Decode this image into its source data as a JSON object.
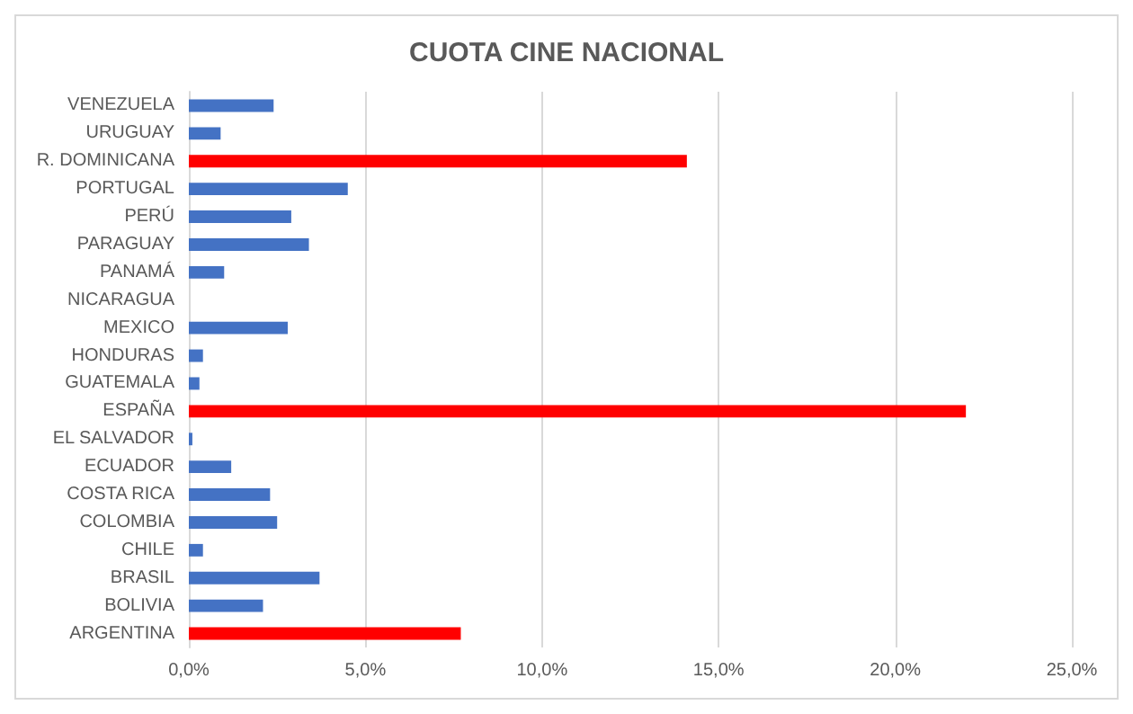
{
  "chart_data": {
    "type": "bar",
    "orientation": "horizontal",
    "title": "CUOTA CINE NACIONAL",
    "categories": [
      "VENEZUELA",
      "URUGUAY",
      "R. DOMINICANA",
      "PORTUGAL",
      "PERÚ",
      "PARAGUAY",
      "PANAMÁ",
      "NICARAGUA",
      "MEXICO",
      "HONDURAS",
      "GUATEMALA",
      "ESPAÑA",
      "EL SALVADOR",
      "ECUADOR",
      "COSTA RICA",
      "COLOMBIA",
      "CHILE",
      "BRASIL",
      "BOLIVIA",
      "ARGENTINA"
    ],
    "values": [
      2.4,
      0.9,
      14.1,
      4.5,
      2.9,
      3.4,
      1.0,
      0,
      2.8,
      0.4,
      0.3,
      22.0,
      0.1,
      1.2,
      2.3,
      2.5,
      0.4,
      3.7,
      2.1,
      7.7
    ],
    "colors": [
      "#4472c4",
      "#4472c4",
      "#ff0000",
      "#4472c4",
      "#4472c4",
      "#4472c4",
      "#4472c4",
      "#4472c4",
      "#4472c4",
      "#4472c4",
      "#4472c4",
      "#ff0000",
      "#4472c4",
      "#4472c4",
      "#4472c4",
      "#4472c4",
      "#4472c4",
      "#4472c4",
      "#4472c4",
      "#ff0000"
    ],
    "xlim": [
      0,
      25
    ],
    "xticks": [
      {
        "value": 0,
        "label": "0,0%"
      },
      {
        "value": 5,
        "label": "5,0%"
      },
      {
        "value": 10,
        "label": "10,0%"
      },
      {
        "value": 15,
        "label": "15,0%"
      },
      {
        "value": 20,
        "label": "20,0%"
      },
      {
        "value": 25,
        "label": "25,0%"
      }
    ],
    "grid": "x"
  }
}
